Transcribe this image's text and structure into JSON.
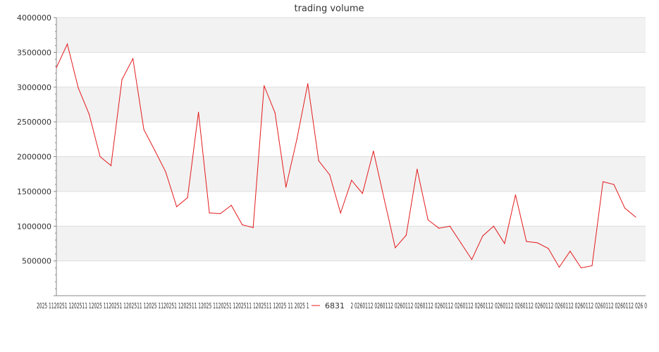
{
  "chart_data": {
    "type": "line",
    "title": "trading volume",
    "xlabel": "",
    "ylabel": "",
    "ylim": [
      0,
      4000000
    ],
    "yticks": [
      "500000",
      "1000000",
      "1500000",
      "2000000",
      "2500000",
      "3000000",
      "3500000",
      "4000000"
    ],
    "ytick_values": [
      500000,
      1000000,
      1500000,
      2000000,
      2500000,
      3000000,
      3500000,
      4000000
    ],
    "grid": true,
    "legend_position": "bottom-center",
    "series_color": "#e41a1c",
    "series": [
      {
        "name": "6831",
        "values": [
          3280000,
          3620000,
          2990000,
          2610000,
          2000000,
          1870000,
          3110000,
          3410000,
          2390000,
          2090000,
          1780000,
          1280000,
          1410000,
          2640000,
          1190000,
          1180000,
          1300000,
          1020000,
          980000,
          3020000,
          2630000,
          1560000,
          2250000,
          3050000,
          1940000,
          1740000,
          1190000,
          1660000,
          1470000,
          2080000,
          1380000,
          690000,
          870000,
          1820000,
          1090000,
          970000,
          1000000,
          760000,
          520000,
          860000,
          1000000,
          750000,
          1450000,
          780000,
          760000,
          680000,
          410000,
          640000,
          400000,
          430000,
          1640000,
          1600000,
          1260000,
          1130000
        ]
      }
    ],
    "x_tick_text": "2025 1120251 1202511 12025 1120251 1202511 12025 1120251 1202511 12025 1120251 1202511 1202511 12025 11 2025 112025 11 2026 0112 0260112 0260112 0260112 0260112 0260112 0260112 0260112 0260112 0260112 0260112 0260112 0260112 0260112 0260112 026 0"
  }
}
